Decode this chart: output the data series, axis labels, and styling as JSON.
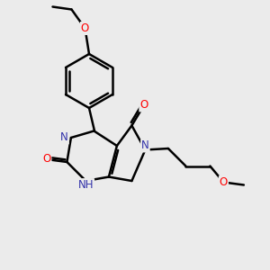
{
  "bg_color": "#ebebeb",
  "bond_color": "#000000",
  "bond_width": 1.8,
  "atom_colors": {
    "N": "#3333aa",
    "O": "#ff0000",
    "C": "#000000",
    "H": "#708090"
  },
  "font_size": 8.5,
  "fig_width": 3.0,
  "fig_height": 3.0,
  "dpi": 100
}
